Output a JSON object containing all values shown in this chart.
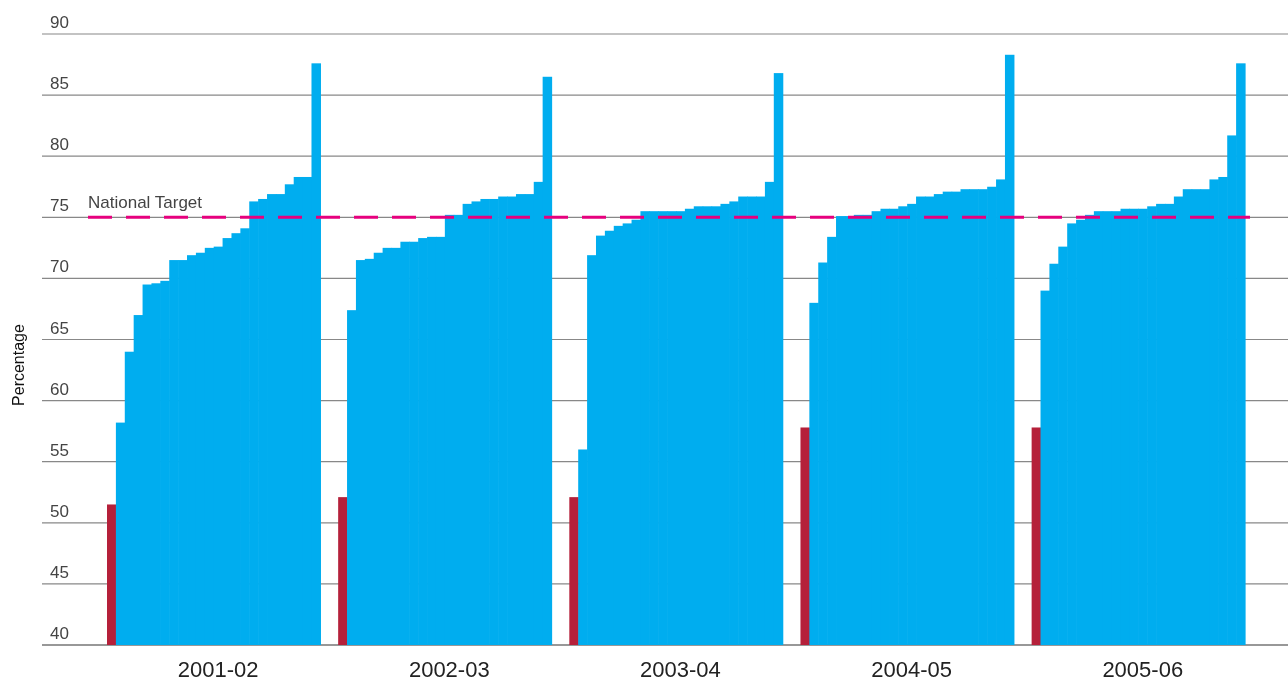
{
  "chart_data": {
    "type": "bar",
    "ylabel": "Percentage",
    "ylim": [
      40,
      90
    ],
    "yticks": [
      40,
      45,
      50,
      55,
      60,
      65,
      70,
      75,
      80,
      85,
      90
    ],
    "grid": "y",
    "categories": [
      null,
      null,
      null,
      null,
      null,
      null,
      null,
      null,
      null,
      null,
      null,
      null,
      "2001-02",
      null,
      null,
      null,
      null,
      null,
      null,
      null,
      null,
      null,
      null,
      null,
      null,
      null,
      null,
      null,
      null,
      null,
      null,
      null,
      null,
      null,
      null,
      null,
      null,
      null,
      "2002-03",
      null,
      null,
      null,
      null,
      null,
      null,
      null,
      null,
      null,
      null,
      null,
      null,
      null,
      null,
      null,
      null,
      null,
      null,
      null,
      null,
      null,
      null,
      null,
      null,
      null,
      "2003-04",
      null,
      null,
      null,
      null,
      null,
      null,
      null,
      null,
      null,
      null,
      null,
      null,
      null,
      null,
      null,
      null,
      null,
      null,
      null,
      null,
      null,
      null,
      null,
      null,
      null,
      "2004-05",
      null,
      null,
      null,
      null,
      null,
      null,
      null,
      null,
      null,
      null,
      null,
      null,
      null,
      null,
      null,
      null,
      null,
      null,
      null,
      null,
      null,
      null,
      null,
      null,
      null,
      "2005-06",
      null,
      null,
      null,
      null,
      null,
      null,
      null,
      null,
      null,
      null,
      null
    ],
    "values": [
      51.5,
      58.2,
      64.0,
      67.0,
      69.5,
      69.6,
      69.8,
      71.5,
      71.5,
      71.9,
      72.1,
      72.5,
      72.6,
      73.3,
      73.7,
      74.1,
      76.3,
      76.5,
      76.9,
      76.9,
      77.7,
      78.3,
      78.3,
      87.6,
      null,
      null,
      52.1,
      67.4,
      71.5,
      71.6,
      72.1,
      72.5,
      72.5,
      73.0,
      73.0,
      73.3,
      73.4,
      73.4,
      75.2,
      75.2,
      76.1,
      76.3,
      76.5,
      76.5,
      76.7,
      76.7,
      76.9,
      76.9,
      77.9,
      86.5,
      null,
      null,
      52.1,
      56.0,
      71.9,
      73.5,
      73.9,
      74.3,
      74.5,
      74.8,
      75.5,
      75.5,
      75.5,
      75.5,
      75.5,
      75.7,
      75.9,
      75.9,
      75.9,
      76.1,
      76.3,
      76.7,
      76.7,
      76.7,
      77.9,
      86.8,
      null,
      null,
      57.8,
      68.0,
      71.3,
      73.4,
      75.1,
      75.1,
      75.2,
      75.2,
      75.5,
      75.7,
      75.7,
      75.9,
      76.1,
      76.7,
      76.7,
      76.9,
      77.1,
      77.1,
      77.3,
      77.3,
      77.3,
      77.5,
      78.1,
      88.3,
      null,
      null,
      57.8,
      69.0,
      71.2,
      72.6,
      74.5,
      74.8,
      75.2,
      75.5,
      75.5,
      75.5,
      75.7,
      75.7,
      75.7,
      75.9,
      76.1,
      76.1,
      76.7,
      77.3,
      77.3,
      77.3,
      78.1,
      78.3,
      81.7,
      87.6
    ],
    "colors": [
      "#b5203a",
      "#00adef",
      "#00adef",
      "#00adef",
      "#00adef",
      "#00adef",
      "#00adef",
      "#00adef",
      "#00adef",
      "#00adef",
      "#00adef",
      "#00adef",
      "#00adef",
      "#00adef",
      "#00adef",
      "#00adef",
      "#00adef",
      "#00adef",
      "#00adef",
      "#00adef",
      "#00adef",
      "#00adef",
      "#00adef",
      "#00adef",
      null,
      null,
      "#b5203a",
      "#00adef",
      "#00adef",
      "#00adef",
      "#00adef",
      "#00adef",
      "#00adef",
      "#00adef",
      "#00adef",
      "#00adef",
      "#00adef",
      "#00adef",
      "#00adef",
      "#00adef",
      "#00adef",
      "#00adef",
      "#00adef",
      "#00adef",
      "#00adef",
      "#00adef",
      "#00adef",
      "#00adef",
      "#00adef",
      "#00adef",
      null,
      null,
      "#b5203a",
      "#00adef",
      "#00adef",
      "#00adef",
      "#00adef",
      "#00adef",
      "#00adef",
      "#00adef",
      "#00adef",
      "#00adef",
      "#00adef",
      "#00adef",
      "#00adef",
      "#00adef",
      "#00adef",
      "#00adef",
      "#00adef",
      "#00adef",
      "#00adef",
      "#00adef",
      "#00adef",
      "#00adef",
      "#00adef",
      "#00adef",
      null,
      null,
      "#b5203a",
      "#00adef",
      "#00adef",
      "#00adef",
      "#00adef",
      "#00adef",
      "#00adef",
      "#00adef",
      "#00adef",
      "#00adef",
      "#00adef",
      "#00adef",
      "#00adef",
      "#00adef",
      "#00adef",
      "#00adef",
      "#00adef",
      "#00adef",
      "#00adef",
      "#00adef",
      "#00adef",
      "#00adef",
      "#00adef",
      "#00adef",
      null,
      null,
      "#b5203a",
      "#00adef",
      "#00adef",
      "#00adef",
      "#00adef",
      "#00adef",
      "#00adef",
      "#00adef",
      "#00adef",
      "#00adef",
      "#00adef",
      "#00adef",
      "#00adef",
      "#00adef",
      "#00adef",
      "#00adef",
      "#00adef",
      "#00adef",
      "#00adef",
      "#00adef",
      "#00adef",
      "#00adef",
      "#00adef",
      "#00adef"
    ],
    "ref_lines": [
      {
        "axis": "y",
        "value": 75,
        "label": "National Target",
        "color": "#e6007e",
        "line_style": "dashed"
      }
    ]
  }
}
